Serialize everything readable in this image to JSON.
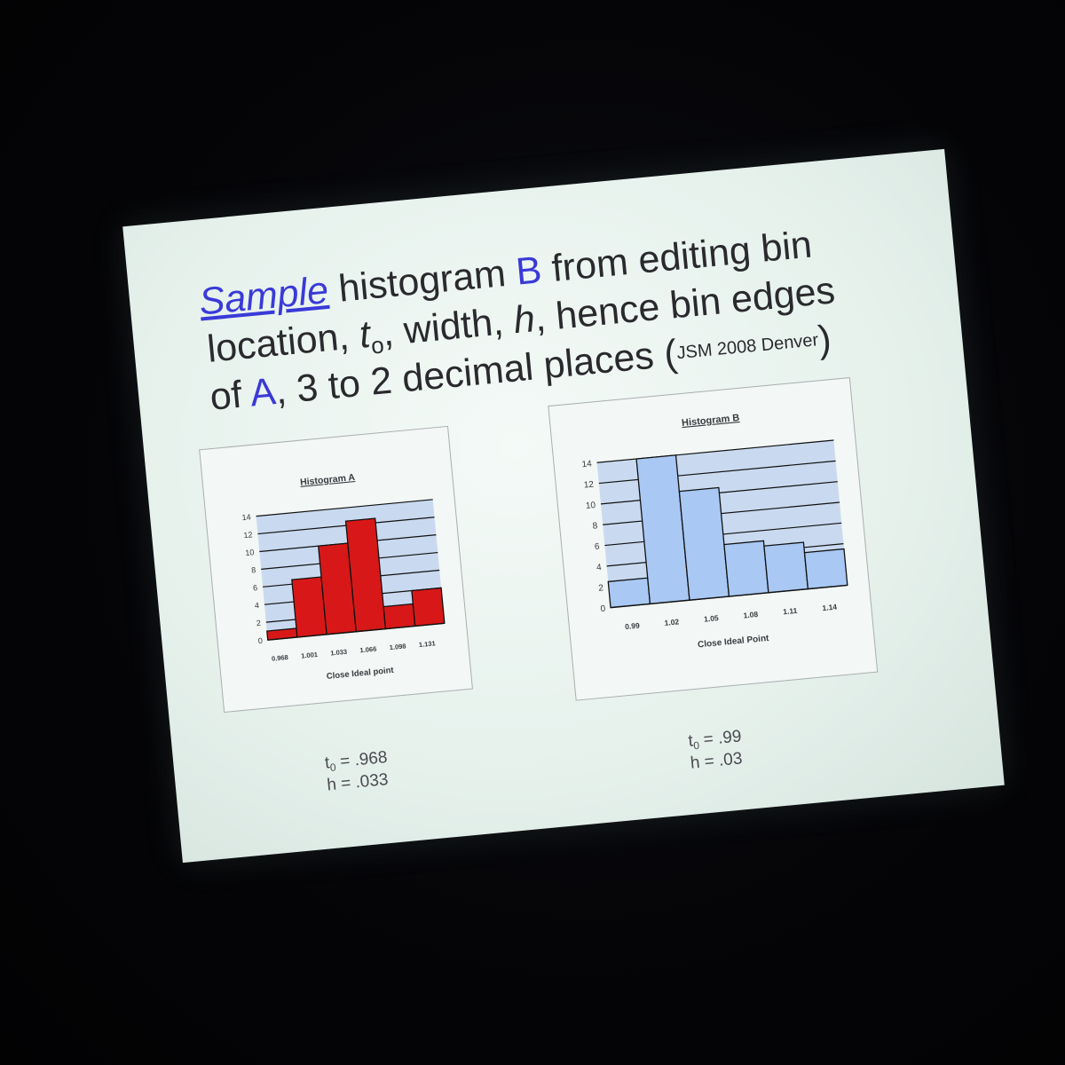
{
  "slide": {
    "title": {
      "line1": {
        "sample": "Sample",
        "rest1": " histogram ",
        "b": "B",
        "rest2": " from editing bin"
      },
      "line2": {
        "pre": "location, ",
        "t": "t",
        "sub": "o",
        "post": ", width, ",
        "h": "h",
        "post2": ", hence bin edges"
      },
      "line3": {
        "pre": "of ",
        "a": "A",
        "post": ", 3 to 2 decimal places ",
        "ref_open": "(",
        "ref": "JSM 2008 Denver",
        "ref_close": ")"
      }
    },
    "params_a": {
      "t_label": "t",
      "t_sub": "0",
      "t_value": " = .968",
      "h_line": "h = .033"
    },
    "params_b": {
      "t_label": "t",
      "t_sub": "0",
      "t_value": " = .99",
      "h_line": "h = .03"
    }
  },
  "colors": {
    "hist_a_bar": "#d81818",
    "hist_b_bar": "#a9c8f4",
    "plot_bg": "#c9daf0",
    "gridline": "#101010",
    "accent_blue": "#3a3ad8"
  },
  "chart_data": [
    {
      "type": "bar",
      "title": "Histogram A",
      "xlabel": "Close Ideal point",
      "ylabel": "",
      "categories": [
        "0.968",
        "1.001",
        "1.033",
        "1.066",
        "1.098",
        "1.131"
      ],
      "values": [
        1,
        6.5,
        10,
        12.5,
        2.5,
        4
      ],
      "bar_edges_count": 7,
      "ylim": [
        0,
        14
      ],
      "yticks": [
        "0",
        "2",
        "4",
        "6",
        "8",
        "10",
        "12",
        "14"
      ],
      "grid": true,
      "legend": "none"
    },
    {
      "type": "bar",
      "title": "Histogram B",
      "xlabel": "Close Ideal Point",
      "ylabel": "",
      "categories": [
        "0.99",
        "1.02",
        "1.05",
        "1.08",
        "1.11",
        "1.14"
      ],
      "values": [
        2.5,
        14,
        10.5,
        5,
        4.5,
        3.5
      ],
      "ylim": [
        0,
        14
      ],
      "yticks": [
        "0",
        "2",
        "4",
        "6",
        "8",
        "10",
        "12",
        "14"
      ],
      "grid": true,
      "legend": "none"
    }
  ]
}
